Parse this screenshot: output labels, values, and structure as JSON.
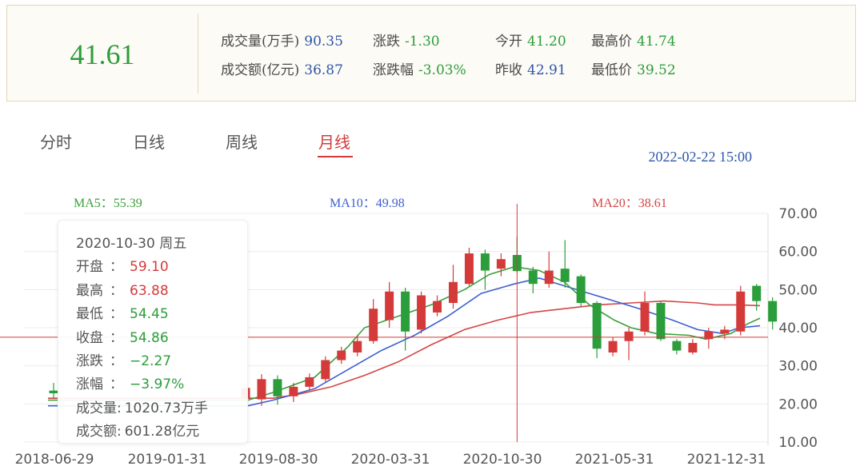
{
  "quote": {
    "price": "41.61",
    "stats": {
      "volume": {
        "label": "成交量(万手)",
        "value": "90.35"
      },
      "amount": {
        "label": "成交额(亿元)",
        "value": "36.87"
      },
      "change": {
        "label": "涨跌",
        "value": "-1.30"
      },
      "change_pct": {
        "label": "涨跌幅",
        "value": "-3.03%"
      },
      "open": {
        "label": "今开",
        "value": "41.20"
      },
      "prev_close": {
        "label": "昨收",
        "value": "42.91"
      },
      "high": {
        "label": "最高价",
        "value": "41.74"
      },
      "low": {
        "label": "最低价",
        "value": "39.52"
      }
    }
  },
  "tabs": [
    "分时",
    "日线",
    "周线",
    "月线"
  ],
  "active_tab": "月线",
  "datetime": "2022-02-22 15:00",
  "ma": {
    "ma5": "MA5：55.39",
    "ma10": "MA10：49.98",
    "ma20": "MA20：38.61"
  },
  "tooltip": {
    "date": "2020-10-30  周五",
    "rows": [
      {
        "label": "开盘",
        "sep": "：",
        "value": "59.10",
        "color": "#d53a3a"
      },
      {
        "label": "最高",
        "sep": "：",
        "value": "63.88",
        "color": "#d53a3a"
      },
      {
        "label": "最低",
        "sep": "：",
        "value": "54.45",
        "color": "#2c9d3b"
      },
      {
        "label": "收盘",
        "sep": "：",
        "value": "54.86",
        "color": "#2c9d3b"
      },
      {
        "label": "涨跌",
        "sep": "：",
        "value": "−2.27",
        "color": "#2c9d3b"
      },
      {
        "label": "涨幅",
        "sep": "：",
        "value": "−3.97%",
        "color": "#2c9d3b"
      },
      {
        "label": "成交量",
        "sep": ":",
        "value": "1020.73万手",
        "color": "#555555"
      },
      {
        "label": "成交额",
        "sep": ":",
        "value": "601.28亿元",
        "color": "#555555"
      }
    ]
  },
  "colors": {
    "up": "#d53a3a",
    "down": "#2c9d3b",
    "ma5": "#3aa03a",
    "ma10": "#3d5fd0",
    "ma20": "#d54545"
  },
  "chart_data": {
    "type": "candlestick",
    "ylim": [
      10,
      70
    ],
    "y_ticks": [
      "70.00",
      "60.00",
      "50.00",
      "40.00",
      "30.00",
      "20.00",
      "10.00"
    ],
    "x_ticks": [
      "2018-06-29",
      "2019-01-31",
      "2019-08-30",
      "2020-03-31",
      "2020-10-30",
      "2021-05-31",
      "2021-12-31"
    ],
    "crosshair": {
      "date": "2020-10-30",
      "price": 37.5
    },
    "candles": [
      {
        "date": "2018-06-29",
        "open": 23.5,
        "close": 22.8,
        "high": 25.5,
        "low": 21.5
      },
      {
        "date": "2019-06-28",
        "open": 21.6,
        "close": 24.2,
        "high": 25.5,
        "low": 20.8
      },
      {
        "date": "2019-07-31",
        "open": 21.2,
        "close": 26.5,
        "high": 27.8,
        "low": 19.5
      },
      {
        "date": "2019-08-30",
        "open": 26.5,
        "close": 22.0,
        "high": 27.5,
        "low": 19.8
      },
      {
        "date": "2019-09-30",
        "open": 22.0,
        "close": 24.5,
        "high": 25.5,
        "low": 20.5
      },
      {
        "date": "2019-10-31",
        "open": 24.5,
        "close": 27.0,
        "high": 28.0,
        "low": 23.5
      },
      {
        "date": "2019-11-29",
        "open": 26.5,
        "close": 31.5,
        "high": 32.5,
        "low": 25.8
      },
      {
        "date": "2019-12-31",
        "open": 31.5,
        "close": 34.0,
        "high": 35.0,
        "low": 30.5
      },
      {
        "date": "2020-01-23",
        "open": 33.5,
        "close": 36.5,
        "high": 38.0,
        "low": 32.5
      },
      {
        "date": "2020-02-28",
        "open": 36.5,
        "close": 45.0,
        "high": 47.5,
        "low": 35.8
      },
      {
        "date": "2020-03-31",
        "open": 42.0,
        "close": 49.5,
        "high": 52.0,
        "low": 40.0
      },
      {
        "date": "2020-04-30",
        "open": 49.5,
        "close": 39.0,
        "high": 50.5,
        "low": 34.0
      },
      {
        "date": "2020-05-29",
        "open": 39.5,
        "close": 48.5,
        "high": 49.5,
        "low": 38.5
      },
      {
        "date": "2020-06-30",
        "open": 44.0,
        "close": 47.0,
        "high": 48.5,
        "low": 43.0
      },
      {
        "date": "2020-07-31",
        "open": 46.5,
        "close": 52.0,
        "high": 56.5,
        "low": 45.0
      },
      {
        "date": "2020-08-31",
        "open": 51.5,
        "close": 59.5,
        "high": 61.0,
        "low": 51.0
      },
      {
        "date": "2020-09-30",
        "open": 59.5,
        "close": 55.0,
        "high": 60.5,
        "low": 50.0
      },
      {
        "date": "2020-10-09",
        "open": 55.5,
        "close": 58.0,
        "high": 59.5,
        "low": 53.5
      },
      {
        "date": "2020-10-30",
        "open": 59.1,
        "close": 54.86,
        "high": 63.88,
        "low": 54.45
      },
      {
        "date": "2020-11-30",
        "open": 55.0,
        "close": 51.5,
        "high": 56.0,
        "low": 49.0
      },
      {
        "date": "2020-12-31",
        "open": 51.5,
        "close": 55.0,
        "high": 60.0,
        "low": 50.5
      },
      {
        "date": "2021-01-29",
        "open": 55.5,
        "close": 52.0,
        "high": 63.0,
        "low": 50.5
      },
      {
        "date": "2021-02-26",
        "open": 53.5,
        "close": 46.5,
        "high": 54.0,
        "low": 45.5
      },
      {
        "date": "2021-03-31",
        "open": 46.5,
        "close": 34.5,
        "high": 47.0,
        "low": 32.0
      },
      {
        "date": "2021-04-30",
        "open": 33.5,
        "close": 36.5,
        "high": 37.5,
        "low": 32.5
      },
      {
        "date": "2021-05-31",
        "open": 36.5,
        "close": 39.0,
        "high": 40.0,
        "low": 31.5
      },
      {
        "date": "2021-06-30",
        "open": 39.0,
        "close": 46.5,
        "high": 49.5,
        "low": 38.0
      },
      {
        "date": "2021-07-30",
        "open": 46.5,
        "close": 37.0,
        "high": 47.0,
        "low": 36.5
      },
      {
        "date": "2021-08-31",
        "open": 36.5,
        "close": 34.0,
        "high": 37.0,
        "low": 33.0
      },
      {
        "date": "2021-09-30",
        "open": 33.5,
        "close": 36.0,
        "high": 37.0,
        "low": 33.0
      },
      {
        "date": "2021-10-29",
        "open": 37.0,
        "close": 39.0,
        "high": 40.0,
        "low": 34.5
      },
      {
        "date": "2021-11-30",
        "open": 38.5,
        "close": 39.5,
        "high": 40.5,
        "low": 37.0
      },
      {
        "date": "2021-12-31",
        "open": 39.0,
        "close": 49.5,
        "high": 51.0,
        "low": 38.0
      },
      {
        "date": "2022-01-28",
        "open": 51.0,
        "close": 47.0,
        "high": 51.5,
        "low": 44.5
      },
      {
        "date": "2022-02-22",
        "open": 47.0,
        "close": 41.61,
        "high": 48.0,
        "low": 39.52
      }
    ],
    "ma5_line": [
      [
        0,
        21.0
      ],
      [
        12,
        21.0
      ],
      [
        15,
        23.0
      ],
      [
        20,
        27.0
      ],
      [
        24,
        35.0
      ],
      [
        26,
        40.0
      ],
      [
        30,
        43.0
      ],
      [
        34,
        46.0
      ],
      [
        38,
        50.0
      ],
      [
        41,
        54.0
      ],
      [
        44,
        56.0
      ],
      [
        47,
        55.0
      ],
      [
        50,
        52.0
      ],
      [
        53,
        46.0
      ],
      [
        56,
        42.0
      ],
      [
        58,
        40.0
      ],
      [
        61,
        38.5
      ],
      [
        65,
        38.0
      ],
      [
        67,
        37.0
      ],
      [
        70,
        38.5
      ],
      [
        72,
        41.0
      ],
      [
        73.5,
        42.5
      ]
    ],
    "ma10_line": [
      [
        0,
        19.5
      ],
      [
        12,
        19.5
      ],
      [
        15,
        21.0
      ],
      [
        20,
        24.0
      ],
      [
        24,
        29.0
      ],
      [
        28,
        34.0
      ],
      [
        32,
        38.0
      ],
      [
        36,
        43.0
      ],
      [
        40,
        49.0
      ],
      [
        44,
        51.5
      ],
      [
        47,
        53.0
      ],
      [
        50,
        51.0
      ],
      [
        53,
        49.0
      ],
      [
        56,
        47.0
      ],
      [
        59,
        45.0
      ],
      [
        63,
        42.0
      ],
      [
        66,
        39.5
      ],
      [
        69,
        38.5
      ],
      [
        71,
        40.0
      ],
      [
        73.5,
        40.5
      ]
    ],
    "ma20_line": [
      [
        0,
        21.5
      ],
      [
        15,
        21.5
      ],
      [
        18,
        22.5
      ],
      [
        22,
        24.5
      ],
      [
        26,
        27.5
      ],
      [
        30,
        31.0
      ],
      [
        34,
        35.5
      ],
      [
        38,
        39.5
      ],
      [
        42,
        42.0
      ],
      [
        46,
        44.0
      ],
      [
        50,
        45.0
      ],
      [
        54,
        46.0
      ],
      [
        58,
        46.5
      ],
      [
        62,
        47.0
      ],
      [
        66,
        46.5
      ],
      [
        68,
        46.0
      ],
      [
        71,
        46.0
      ],
      [
        73.5,
        45.8
      ]
    ]
  }
}
